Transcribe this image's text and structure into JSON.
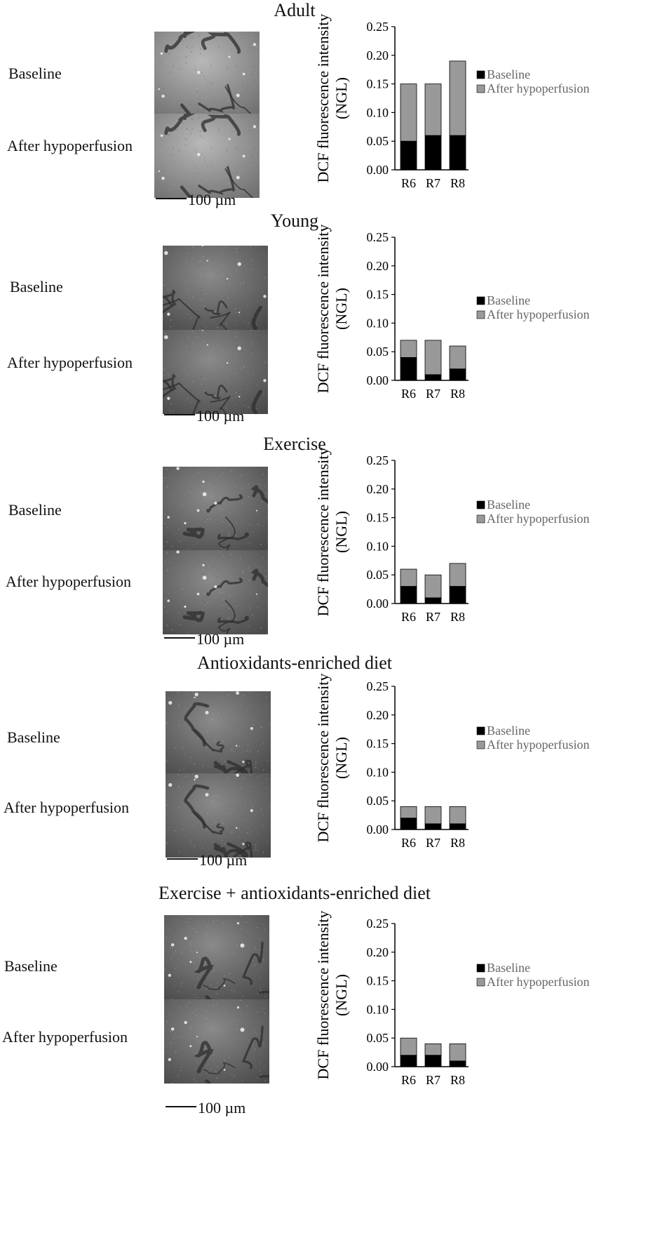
{
  "panels": [
    {
      "title": "Adult",
      "baseline_label": "Baseline",
      "after_label": "After hypoperfusion",
      "scale_label": "100 µm",
      "chart_data": {
        "type": "bar",
        "stacked": true,
        "categories": [
          "R6",
          "R7",
          "R8"
        ],
        "series": [
          {
            "name": "Baseline",
            "values": [
              0.05,
              0.06,
              0.06
            ],
            "color": "#000000"
          },
          {
            "name": "After hypoperfusion",
            "values": [
              0.1,
              0.09,
              0.13
            ],
            "color": "#999999"
          }
        ],
        "ylabel": "DCF fluorescence intensity (NGL)",
        "ylim": [
          0,
          0.25
        ],
        "yticks": [
          "0.00",
          "0.05",
          "0.10",
          "0.15",
          "0.20",
          "0.25"
        ],
        "legend_position": "right"
      }
    },
    {
      "title": "Young",
      "baseline_label": "Baseline",
      "after_label": "After hypoperfusion",
      "scale_label": "100 µm",
      "chart_data": {
        "type": "bar",
        "stacked": true,
        "categories": [
          "R6",
          "R7",
          "R8"
        ],
        "series": [
          {
            "name": "Baseline",
            "values": [
              0.04,
              0.01,
              0.02
            ],
            "color": "#000000"
          },
          {
            "name": "After hypoperfusion",
            "values": [
              0.03,
              0.06,
              0.04
            ],
            "color": "#999999"
          }
        ],
        "ylabel": "DCF fluorescence intensity (NGL)",
        "ylim": [
          0,
          0.25
        ],
        "yticks": [
          "0.00",
          "0.05",
          "0.10",
          "0.15",
          "0.20",
          "0.25"
        ],
        "legend_position": "right"
      }
    },
    {
      "title": "Exercise",
      "baseline_label": "Baseline",
      "after_label": "After hypoperfusion",
      "scale_label": "100 µm",
      "chart_data": {
        "type": "bar",
        "stacked": true,
        "categories": [
          "R6",
          "R7",
          "R8"
        ],
        "series": [
          {
            "name": "Baseline",
            "values": [
              0.03,
              0.01,
              0.03
            ],
            "color": "#000000"
          },
          {
            "name": "After hypoperfusion",
            "values": [
              0.03,
              0.04,
              0.04
            ],
            "color": "#999999"
          }
        ],
        "ylabel": "DCF fluorescence intensity (NGL)",
        "ylim": [
          0,
          0.25
        ],
        "yticks": [
          "0.00",
          "0.05",
          "0.10",
          "0.15",
          "0.20",
          "0.25"
        ],
        "legend_position": "right"
      }
    },
    {
      "title": "Antioxidants-enriched diet",
      "baseline_label": "Baseline",
      "after_label": "After hypoperfusion",
      "scale_label": "100 µm",
      "chart_data": {
        "type": "bar",
        "stacked": true,
        "categories": [
          "R6",
          "R7",
          "R8"
        ],
        "series": [
          {
            "name": "Baseline",
            "values": [
              0.02,
              0.01,
              0.01
            ],
            "color": "#000000"
          },
          {
            "name": "After hypoperfusion",
            "values": [
              0.02,
              0.03,
              0.03
            ],
            "color": "#999999"
          }
        ],
        "ylabel": "DCF fluorescence intensity (NGL)",
        "ylim": [
          0,
          0.25
        ],
        "yticks": [
          "0.00",
          "0.05",
          "0.10",
          "0.15",
          "0.20",
          "0.25"
        ],
        "legend_position": "right"
      }
    },
    {
      "title": "Exercise + antioxidants-enriched diet",
      "baseline_label": "Baseline",
      "after_label": "After hypoperfusion",
      "scale_label": "100 µm",
      "chart_data": {
        "type": "bar",
        "stacked": true,
        "categories": [
          "R6",
          "R7",
          "R8"
        ],
        "series": [
          {
            "name": "Baseline",
            "values": [
              0.02,
              0.02,
              0.01
            ],
            "color": "#000000"
          },
          {
            "name": "After hypoperfusion",
            "values": [
              0.03,
              0.02,
              0.03
            ],
            "color": "#999999"
          }
        ],
        "ylabel": "DCF fluorescence intensity (NGL)",
        "ylim": [
          0,
          0.25
        ],
        "yticks": [
          "0.00",
          "0.05",
          "0.10",
          "0.15",
          "0.20",
          "0.25"
        ],
        "legend_position": "right"
      }
    }
  ]
}
